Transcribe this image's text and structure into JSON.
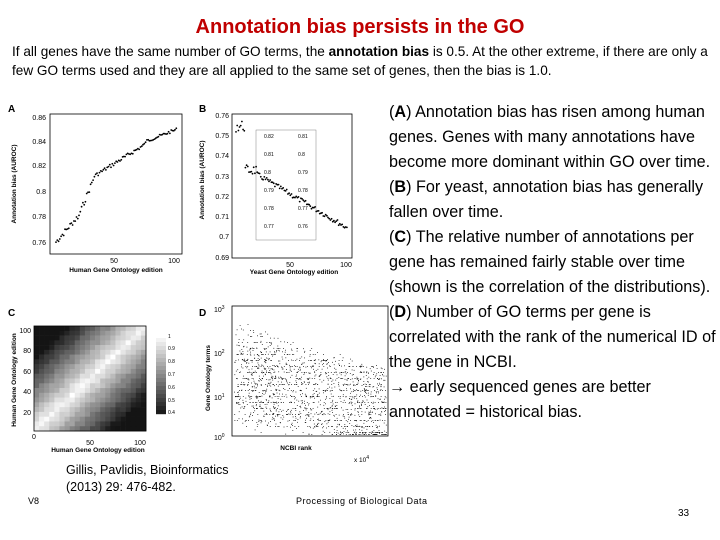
{
  "slide": {
    "title": "Annotation bias persists in the GO",
    "intro_parts": [
      "If all genes have the same number of GO terms, the ",
      "annotation bias",
      " is 0.5. At the other extreme, if there are only a few GO terms used and they are all applied to the same set of genes, then the bias is 1.0."
    ],
    "right_text": [
      {
        "letter": "A",
        "text": ") Annotation bias has risen among human genes. Genes with many annotations have become more dominant within GO over time."
      },
      {
        "letter": "B",
        "text": ") For yeast, annotation bias has generally fallen over time."
      },
      {
        "letter": "C",
        "text": ") The relative number of annotations per gene has remained fairly stable over time (shown is the correlation of the distributions)."
      },
      {
        "letter": "D",
        "text": ") Number of GO terms per gene is correlated with the rank of the numerical ID of the gene in NCBI."
      }
    ],
    "right_conclusion": "→ early sequenced genes are better annotated = historical bias.",
    "citation_line1": "Gillis, Pavlidis, Bioinformatics",
    "citation_line2": "(2013) 29: 476-482.",
    "footer_left": "V8",
    "footer_center": "Processing of Biological Data",
    "page_number": "33"
  },
  "figure": {
    "panel_labels": [
      "A",
      "B",
      "C",
      "D"
    ],
    "panel_a": {
      "ylabel": "Annotation bias (AUROC)",
      "xlabel": "Human Gene Ontology edition",
      "yticks": [
        "0.86",
        "0.84",
        "0.82",
        "0.8",
        "0.78",
        "0.76"
      ],
      "xticks": [
        "50",
        "100"
      ]
    },
    "panel_b": {
      "ylabel": "Annotation bias (AUROC)",
      "xlabel": "Yeast Gene Ontology edition",
      "yticks": [
        "0.76",
        "0.75",
        "0.74",
        "0.73",
        "0.72",
        "0.71",
        "0.7",
        "0.69"
      ],
      "xticks": [
        "50",
        "100"
      ],
      "inset_left": [
        "0.82",
        "0.81",
        "0.8",
        "0.79",
        "0.78",
        "0.77"
      ],
      "inset_right": [
        "0.81",
        "0.8",
        "0.79",
        "0.78",
        "0.77",
        "0.76"
      ]
    },
    "panel_c": {
      "ylabel": "Human Gene Ontology edition",
      "xlabel": "Human Gene Ontology edition",
      "yticks": [
        "100",
        "80",
        "60",
        "40",
        "20"
      ],
      "xticks": [
        "0",
        "50",
        "100"
      ],
      "cbar_ticks": [
        "1",
        "0.9",
        "0.8",
        "0.7",
        "0.6",
        "0.5",
        "0.4"
      ]
    },
    "panel_d": {
      "ylabel": "Gene Ontology terms",
      "xlabel": "NCBI rank",
      "xscale": "x 10",
      "xscale_exp": "4",
      "yticks": [
        {
          "base": "10",
          "exp": "3"
        },
        {
          "base": "10",
          "exp": "2"
        },
        {
          "base": "10",
          "exp": "1"
        },
        {
          "base": "10",
          "exp": "0"
        }
      ]
    }
  }
}
